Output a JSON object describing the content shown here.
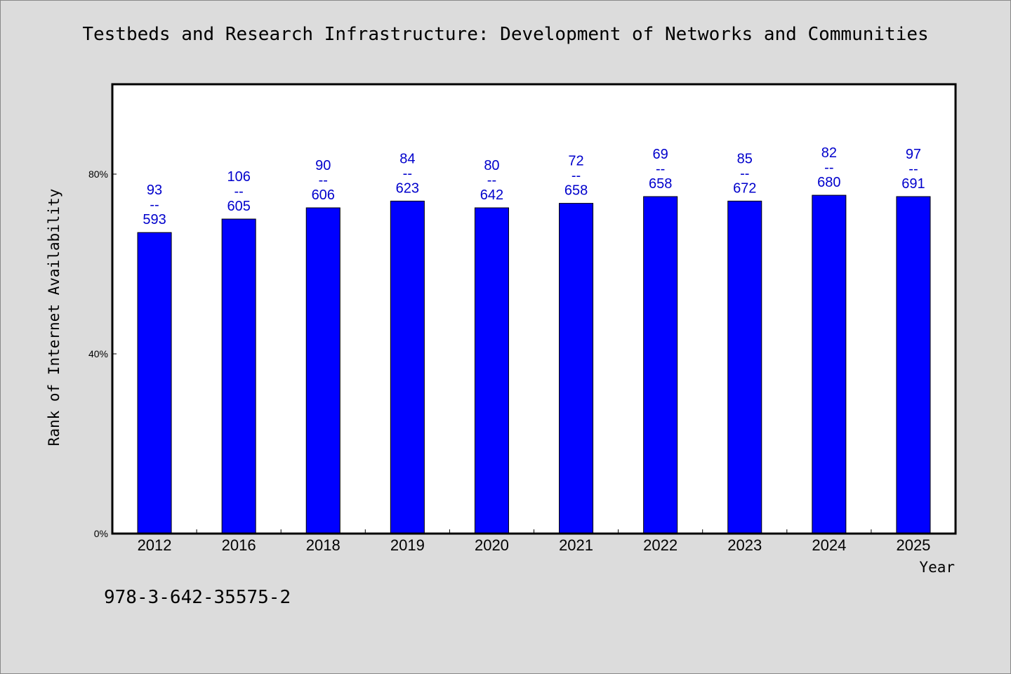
{
  "title": "Testbeds and Research Infrastructure: Development of Networks and Communities",
  "footnote": "978-3-642-35575-2",
  "colors": {
    "bar": "#0000ff",
    "label": "#0000cc",
    "background": "#dcdcdc",
    "plot": "#ffffff"
  },
  "chart_data": {
    "type": "bar",
    "title": "Testbeds and Research Infrastructure: Development of Networks and Communities",
    "xlabel": "Year",
    "ylabel": "Rank of Internet Availability",
    "categories": [
      "2012",
      "2016",
      "2018",
      "2019",
      "2020",
      "2021",
      "2022",
      "2023",
      "2024",
      "2025"
    ],
    "values": [
      67,
      70,
      72.5,
      74,
      72.5,
      73.5,
      75,
      74,
      75.3,
      75
    ],
    "value_unit": "%",
    "ylim": [
      0,
      100
    ],
    "yticks": [
      0,
      40,
      80
    ],
    "ytick_labels": [
      "0%",
      "40%",
      "80%"
    ],
    "annotations": [
      [
        "93",
        "--",
        "593"
      ],
      [
        "106",
        "--",
        "605"
      ],
      [
        "90",
        "--",
        "606"
      ],
      [
        "84",
        "--",
        "623"
      ],
      [
        "80",
        "--",
        "642"
      ],
      [
        "72",
        "--",
        "658"
      ],
      [
        "69",
        "--",
        "658"
      ],
      [
        "85",
        "--",
        "672"
      ],
      [
        "82",
        "--",
        "680"
      ],
      [
        "97",
        "--",
        "691"
      ]
    ],
    "grid": false,
    "legend": "none"
  }
}
